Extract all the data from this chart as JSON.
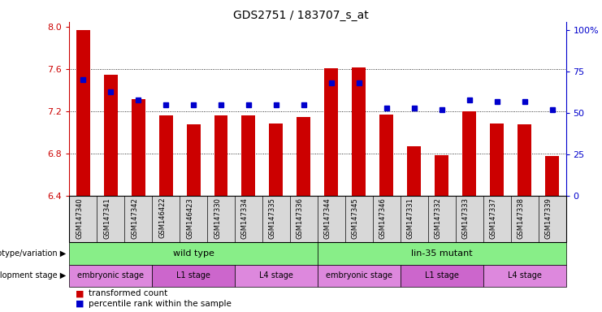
{
  "title": "GDS2751 / 183707_s_at",
  "samples": [
    "GSM147340",
    "GSM147341",
    "GSM147342",
    "GSM146422",
    "GSM146423",
    "GSM147330",
    "GSM147334",
    "GSM147335",
    "GSM147336",
    "GSM147344",
    "GSM147345",
    "GSM147346",
    "GSM147331",
    "GSM147332",
    "GSM147333",
    "GSM147337",
    "GSM147338",
    "GSM147339"
  ],
  "bar_values": [
    7.97,
    7.55,
    7.32,
    7.16,
    7.08,
    7.16,
    7.16,
    7.09,
    7.15,
    7.61,
    7.62,
    7.17,
    6.87,
    6.79,
    7.2,
    7.09,
    7.08,
    6.78
  ],
  "percentile_values": [
    70,
    63,
    58,
    55,
    55,
    55,
    55,
    55,
    55,
    68,
    68,
    53,
    53,
    52,
    58,
    57,
    57,
    52
  ],
  "ylim_left": [
    6.4,
    8.05
  ],
  "ylim_right": [
    0,
    105
  ],
  "yticks_left": [
    6.4,
    6.8,
    7.2,
    7.6,
    8.0
  ],
  "yticks_right": [
    0,
    25,
    50,
    75,
    100
  ],
  "ytick_labels_right": [
    "0",
    "25",
    "50",
    "75",
    "100%"
  ],
  "bar_color": "#cc0000",
  "dot_color": "#0000cc",
  "bar_width": 0.5,
  "dot_size": 5,
  "genotype_groups": [
    {
      "label": "wild type",
      "start": 0,
      "end": 9,
      "color": "#88ee88"
    },
    {
      "label": "lin-35 mutant",
      "start": 9,
      "end": 18,
      "color": "#88ee88"
    }
  ],
  "stage_groups": [
    {
      "label": "embryonic stage",
      "start": 0,
      "end": 3,
      "color": "#dd88dd"
    },
    {
      "label": "L1 stage",
      "start": 3,
      "end": 6,
      "color": "#cc66cc"
    },
    {
      "label": "L4 stage",
      "start": 6,
      "end": 9,
      "color": "#dd88dd"
    },
    {
      "label": "embryonic stage",
      "start": 9,
      "end": 12,
      "color": "#dd88dd"
    },
    {
      "label": "L1 stage",
      "start": 12,
      "end": 15,
      "color": "#cc66cc"
    },
    {
      "label": "L4 stage",
      "start": 15,
      "end": 18,
      "color": "#dd88dd"
    }
  ],
  "genotype_label": "genotype/variation",
  "stage_label": "development stage",
  "legend_items": [
    {
      "color": "#cc0000",
      "label": "transformed count"
    },
    {
      "color": "#0000cc",
      "label": "percentile rank within the sample"
    }
  ]
}
